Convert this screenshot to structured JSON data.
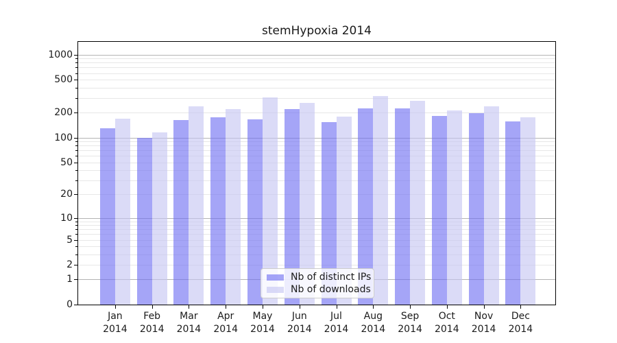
{
  "chart_data": {
    "type": "bar",
    "title": "stemHypoxia 2014",
    "categories": [
      "Jan",
      "Feb",
      "Mar",
      "Apr",
      "May",
      "Jun",
      "Jul",
      "Aug",
      "Sep",
      "Oct",
      "Nov",
      "Dec"
    ],
    "x_year_label": "2014",
    "series": [
      {
        "name": "Nb of distinct IPs",
        "color": "#6e6ef2",
        "fill_alpha": 0.62,
        "values": [
          130,
          100,
          162,
          176,
          165,
          222,
          153,
          226,
          224,
          182,
          196,
          156
        ]
      },
      {
        "name": "Nb of downloads",
        "color": "#c5c5f2",
        "fill_alpha": 0.62,
        "values": [
          170,
          116,
          238,
          220,
          306,
          261,
          179,
          318,
          276,
          213,
          238,
          176
        ]
      }
    ],
    "y_scale": "log1p",
    "y_tick_labels": [
      "1000",
      "500",
      "200",
      "100",
      "50",
      "20",
      "10",
      "5",
      "2",
      "1",
      "0"
    ],
    "y_tick_values": [
      1000,
      500,
      200,
      100,
      50,
      20,
      10,
      5,
      2,
      1,
      0
    ],
    "ylim": [
      0,
      1430
    ],
    "grid": "both",
    "gridline_minor_color": "#e7e7e7",
    "gridline_major_color": "#b3b3b3",
    "legend_position": "inside-bottom-center"
  },
  "colors": {
    "background": "#ffffff",
    "spine": "#000000",
    "text": "#1a1a1a",
    "legend_border": "#cccccc"
  }
}
